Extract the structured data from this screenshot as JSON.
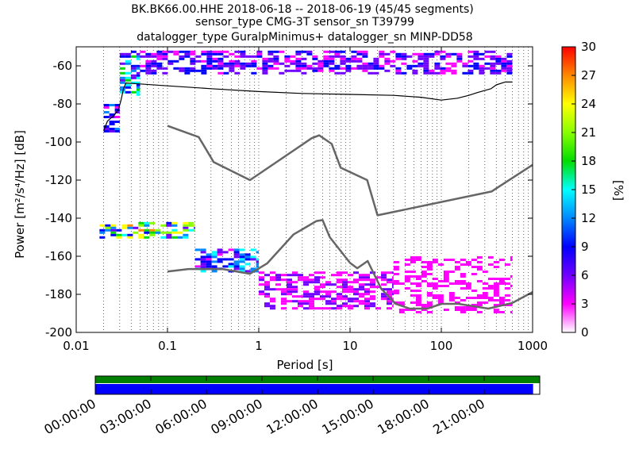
{
  "header": {
    "title_line1": "BK.BK66.00.HHE   2018-06-18 -- 2018-06-19  (45/45 segments)",
    "title_line2": "sensor_type CMG-3T sensor_sn T39799",
    "title_line3": "datalogger_type GuralpMinimus+ datalogger_sn MINP-DD58"
  },
  "chart_data": {
    "type": "heatmap",
    "xlabel": "Period [s]",
    "ylabel": "Power [m²/s⁴/Hz] [dB]",
    "xscale": "log",
    "xlim": [
      0.01,
      1000
    ],
    "ylim": [
      -200,
      -50
    ],
    "x_ticks": [
      "0.01",
      "0.1",
      "1",
      "10",
      "100",
      "1000"
    ],
    "y_ticks": [
      "-60",
      "-80",
      "-100",
      "-120",
      "-140",
      "-160",
      "-180",
      "-200"
    ],
    "grid": "dotted vertical",
    "colorbar": {
      "label": "[%]",
      "min": 0,
      "max": 30,
      "ticks": [
        "0",
        "3",
        "6",
        "9",
        "12",
        "15",
        "18",
        "21",
        "24",
        "27",
        "30"
      ],
      "colors": [
        "#ffffff",
        "#ff00ff",
        "#7000ff",
        "#0000ff",
        "#0088ff",
        "#00ffff",
        "#00dd00",
        "#88ff00",
        "#ffff00",
        "#ff8800",
        "#ff0000"
      ]
    },
    "series": [
      {
        "kind": "noise-model",
        "x": [
          0.1,
          0.22,
          0.32,
          0.8,
          3.8,
          4.6,
          6.3,
          7.9,
          15.4,
          20,
          354.8,
          1000
        ],
        "y": [
          -91.5,
          -97.4,
          -110.5,
          -120,
          -98,
          -96.5,
          -101,
          -113.5,
          -120,
          -138.5,
          -126,
          -112
        ]
      },
      {
        "kind": "noise-model",
        "x": [
          0.1,
          0.17,
          0.4,
          0.8,
          1.24,
          2.4,
          4.3,
          5,
          6,
          10,
          12,
          15.6,
          21.9,
          31.6,
          45,
          70,
          101,
          154,
          328,
          600,
          1000
        ],
        "y": [
          -168,
          -166.7,
          -166.7,
          -169.2,
          -163.7,
          -148.6,
          -141.5,
          -141,
          -150,
          -163.5,
          -166.3,
          -162.5,
          -177,
          -185,
          -187.5,
          -187.5,
          -185,
          -185,
          -187.5,
          -184.5,
          -178.8
        ]
      },
      {
        "kind": "psd-curve",
        "x": [
          0.02,
          0.022,
          0.026,
          0.029,
          0.031,
          0.033,
          0.035,
          0.05,
          0.1,
          0.3,
          1,
          3,
          10,
          30,
          60,
          100,
          150,
          200,
          250,
          350,
          400,
          500,
          600
        ],
        "y": [
          -94,
          -89,
          -86,
          -83,
          -78,
          -72,
          -69,
          -69.5,
          -70.5,
          -72,
          -73.5,
          -74.5,
          -75,
          -75.5,
          -76.5,
          -78,
          -77,
          -75.5,
          -74,
          -72,
          -70,
          -68.5,
          -68.5
        ]
      }
    ],
    "heatmap_bands": [
      {
        "x_range": [
          0.02,
          0.03
        ],
        "y_range": [
          -95,
          -80
        ],
        "level_pct": 8
      },
      {
        "x_range": [
          0.03,
          0.05
        ],
        "y_range": [
          -75,
          -52
        ],
        "level_pct": 12
      },
      {
        "x_range": [
          0.05,
          600
        ],
        "y_range": [
          -64,
          -52
        ],
        "level_pct": 6
      },
      {
        "x_range": [
          0.018,
          0.2
        ],
        "y_range": [
          -150,
          -142
        ],
        "level_pct": 16
      },
      {
        "x_range": [
          0.2,
          1.0
        ],
        "y_range": [
          -168,
          -156
        ],
        "level_pct": 10
      },
      {
        "x_range": [
          1.0,
          30
        ],
        "y_range": [
          -188,
          -168
        ],
        "level_pct": 4
      },
      {
        "x_range": [
          30,
          600
        ],
        "y_range": [
          -190,
          -160
        ],
        "level_pct": 2
      }
    ]
  },
  "timeline": {
    "labels": [
      "00:00:00",
      "03:00:00",
      "06:00:00",
      "09:00:00",
      "12:00:00",
      "15:00:00",
      "18:00:00",
      "21:00:00"
    ],
    "data_coverage": 0.985,
    "coverage_color": "#0000ff",
    "gap_color": "#008000"
  }
}
